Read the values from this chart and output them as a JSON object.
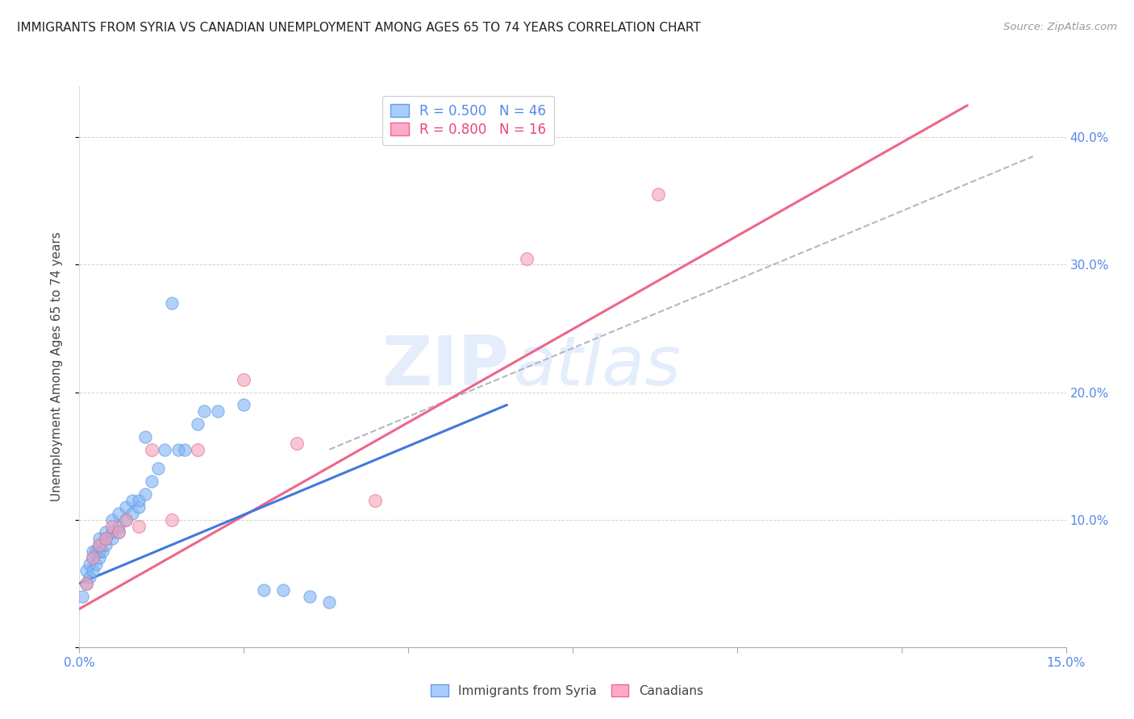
{
  "title": "IMMIGRANTS FROM SYRIA VS CANADIAN UNEMPLOYMENT AMONG AGES 65 TO 74 YEARS CORRELATION CHART",
  "source": "Source: ZipAtlas.com",
  "ylabel": "Unemployment Among Ages 65 to 74 years",
  "xlim": [
    0.0,
    0.15
  ],
  "ylim": [
    0.0,
    0.44
  ],
  "x_ticks": [
    0.0,
    0.025,
    0.05,
    0.075,
    0.1,
    0.125,
    0.15
  ],
  "x_tick_labels_show": [
    "0.0%",
    "",
    "",
    "",
    "",
    "",
    "15.0%"
  ],
  "y_ticks_right": [
    0.0,
    0.1,
    0.2,
    0.3,
    0.4
  ],
  "y_tick_labels_right": [
    "",
    "10.0%",
    "20.0%",
    "30.0%",
    "40.0%"
  ],
  "scatter_blue_x": [
    0.0005,
    0.001,
    0.001,
    0.0015,
    0.0015,
    0.002,
    0.002,
    0.002,
    0.0025,
    0.0025,
    0.003,
    0.003,
    0.003,
    0.003,
    0.0035,
    0.004,
    0.004,
    0.004,
    0.005,
    0.005,
    0.005,
    0.006,
    0.006,
    0.006,
    0.007,
    0.007,
    0.008,
    0.008,
    0.009,
    0.009,
    0.01,
    0.01,
    0.011,
    0.012,
    0.013,
    0.014,
    0.015,
    0.016,
    0.018,
    0.019,
    0.021,
    0.025,
    0.028,
    0.031,
    0.035,
    0.038
  ],
  "scatter_blue_y": [
    0.04,
    0.05,
    0.06,
    0.055,
    0.065,
    0.06,
    0.07,
    0.075,
    0.065,
    0.075,
    0.07,
    0.075,
    0.08,
    0.085,
    0.075,
    0.08,
    0.085,
    0.09,
    0.085,
    0.09,
    0.1,
    0.09,
    0.095,
    0.105,
    0.1,
    0.11,
    0.105,
    0.115,
    0.11,
    0.115,
    0.12,
    0.165,
    0.13,
    0.14,
    0.155,
    0.27,
    0.155,
    0.155,
    0.175,
    0.185,
    0.185,
    0.19,
    0.045,
    0.045,
    0.04,
    0.035
  ],
  "scatter_pink_x": [
    0.001,
    0.002,
    0.003,
    0.004,
    0.005,
    0.006,
    0.007,
    0.009,
    0.011,
    0.014,
    0.018,
    0.025,
    0.033,
    0.045,
    0.068,
    0.088
  ],
  "scatter_pink_y": [
    0.05,
    0.07,
    0.08,
    0.085,
    0.095,
    0.09,
    0.1,
    0.095,
    0.155,
    0.1,
    0.155,
    0.21,
    0.16,
    0.115,
    0.305,
    0.355
  ],
  "blue_line_x": [
    0.0,
    0.065
  ],
  "blue_line_y": [
    0.05,
    0.19
  ],
  "pink_line_x": [
    0.0,
    0.135
  ],
  "pink_line_y": [
    0.03,
    0.425
  ],
  "grey_dash_line_x": [
    0.038,
    0.145
  ],
  "grey_dash_line_y": [
    0.155,
    0.385
  ],
  "watermark_top": "ZIP",
  "watermark_bot": "atlas",
  "title_color": "#222222",
  "blue_scatter_color": "#7fb3f5",
  "blue_scatter_edge": "#5a9ae0",
  "pink_scatter_color": "#f5a0b8",
  "pink_scatter_edge": "#e07090",
  "blue_line_color": "#4477dd",
  "pink_line_color": "#ee6688",
  "grey_line_color": "#b0b8c8",
  "axis_label_color": "#5588ee",
  "background_color": "#ffffff"
}
